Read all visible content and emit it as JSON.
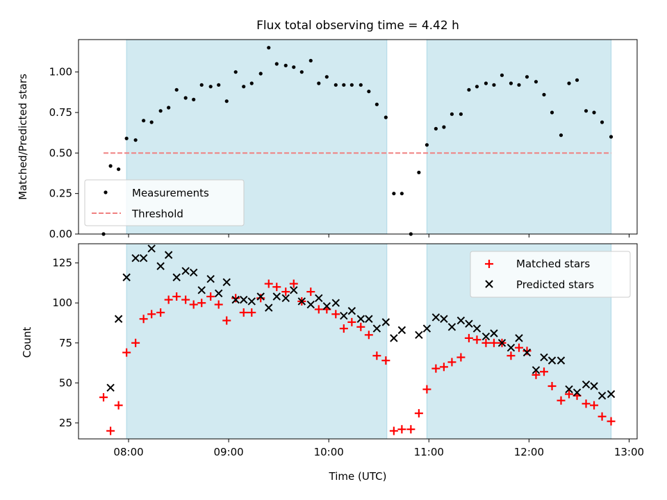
{
  "chart_data": [
    {
      "id": "top",
      "type": "scatter",
      "title": "Flux total observing time = 4.42 h",
      "xlabel": "",
      "ylabel": "Matched/Predicted stars",
      "xlim": [
        7.5,
        13.08
      ],
      "ylim": [
        0,
        1.2
      ],
      "yticks": [
        0.0,
        0.25,
        0.5,
        0.75,
        1.0
      ],
      "ytick_labels": [
        "0.00",
        "0.25",
        "0.50",
        "0.75",
        "1.00"
      ],
      "shaded_intervals": [
        [
          7.98,
          10.58
        ],
        [
          10.98,
          12.82
        ]
      ],
      "threshold": {
        "value": 0.5,
        "x_start": 7.75,
        "x_end": 12.82,
        "label": "Threshold",
        "color": "#f08080"
      },
      "legend": {
        "position": "lower-left",
        "entries": [
          "Measurements",
          "Threshold"
        ]
      },
      "series": [
        {
          "name": "Measurements",
          "marker": "dot",
          "color": "#000000",
          "points": [
            [
              7.75,
              0.0
            ],
            [
              7.82,
              0.42
            ],
            [
              7.9,
              0.4
            ],
            [
              7.98,
              0.59
            ],
            [
              8.07,
              0.58
            ],
            [
              8.15,
              0.7
            ],
            [
              8.23,
              0.69
            ],
            [
              8.32,
              0.76
            ],
            [
              8.4,
              0.78
            ],
            [
              8.48,
              0.89
            ],
            [
              8.57,
              0.84
            ],
            [
              8.65,
              0.83
            ],
            [
              8.73,
              0.92
            ],
            [
              8.82,
              0.91
            ],
            [
              8.9,
              0.92
            ],
            [
              8.98,
              0.82
            ],
            [
              9.07,
              1.0
            ],
            [
              9.15,
              0.91
            ],
            [
              9.23,
              0.93
            ],
            [
              9.32,
              0.99
            ],
            [
              9.4,
              1.15
            ],
            [
              9.48,
              1.05
            ],
            [
              9.57,
              1.04
            ],
            [
              9.65,
              1.03
            ],
            [
              9.73,
              1.0
            ],
            [
              9.82,
              1.07
            ],
            [
              9.9,
              0.93
            ],
            [
              9.98,
              0.97
            ],
            [
              10.07,
              0.92
            ],
            [
              10.15,
              0.92
            ],
            [
              10.23,
              0.92
            ],
            [
              10.32,
              0.92
            ],
            [
              10.4,
              0.88
            ],
            [
              10.48,
              0.8
            ],
            [
              10.57,
              0.72
            ],
            [
              10.65,
              0.25
            ],
            [
              10.73,
              0.25
            ],
            [
              10.82,
              0.0
            ],
            [
              10.9,
              0.38
            ],
            [
              10.98,
              0.55
            ],
            [
              11.07,
              0.65
            ],
            [
              11.15,
              0.66
            ],
            [
              11.23,
              0.74
            ],
            [
              11.32,
              0.74
            ],
            [
              11.4,
              0.89
            ],
            [
              11.48,
              0.91
            ],
            [
              11.57,
              0.93
            ],
            [
              11.65,
              0.92
            ],
            [
              11.73,
              0.98
            ],
            [
              11.82,
              0.93
            ],
            [
              11.9,
              0.92
            ],
            [
              11.98,
              0.97
            ],
            [
              12.07,
              0.94
            ],
            [
              12.15,
              0.86
            ],
            [
              12.23,
              0.75
            ],
            [
              12.32,
              0.61
            ],
            [
              12.4,
              0.93
            ],
            [
              12.48,
              0.95
            ],
            [
              12.57,
              0.76
            ],
            [
              12.65,
              0.75
            ],
            [
              12.73,
              0.69
            ],
            [
              12.82,
              0.6
            ]
          ]
        }
      ]
    },
    {
      "id": "bottom",
      "type": "scatter",
      "title": "",
      "xlabel": "Time (UTC)",
      "ylabel": "Count",
      "xlim": [
        7.5,
        13.08
      ],
      "ylim": [
        15,
        137
      ],
      "yticks": [
        25,
        50,
        75,
        100,
        125
      ],
      "ytick_labels": [
        "25",
        "50",
        "75",
        "100",
        "125"
      ],
      "xticks": [
        8,
        9,
        10,
        11,
        12,
        13
      ],
      "xtick_labels": [
        "08:00",
        "09:00",
        "10:00",
        "11:00",
        "12:00",
        "13:00"
      ],
      "shaded_intervals": [
        [
          7.98,
          10.58
        ],
        [
          10.98,
          12.82
        ]
      ],
      "legend": {
        "position": "top-right",
        "entries": [
          "Matched stars",
          "Predicted stars"
        ]
      },
      "series": [
        {
          "name": "Matched stars",
          "marker": "plus",
          "color": "#ff0000",
          "points": [
            [
              7.75,
              41
            ],
            [
              7.82,
              20
            ],
            [
              7.9,
              36
            ],
            [
              7.98,
              69
            ],
            [
              8.07,
              75
            ],
            [
              8.15,
              90
            ],
            [
              8.23,
              93
            ],
            [
              8.32,
              94
            ],
            [
              8.4,
              102
            ],
            [
              8.48,
              104
            ],
            [
              8.57,
              102
            ],
            [
              8.65,
              99
            ],
            [
              8.73,
              100
            ],
            [
              8.82,
              104
            ],
            [
              8.9,
              99
            ],
            [
              8.98,
              89
            ],
            [
              9.07,
              103
            ],
            [
              9.15,
              94
            ],
            [
              9.23,
              94
            ],
            [
              9.32,
              103
            ],
            [
              9.4,
              112
            ],
            [
              9.48,
              110
            ],
            [
              9.57,
              107
            ],
            [
              9.65,
              112
            ],
            [
              9.73,
              101
            ],
            [
              9.82,
              107
            ],
            [
              9.9,
              96
            ],
            [
              9.98,
              96
            ],
            [
              10.07,
              93
            ],
            [
              10.15,
              84
            ],
            [
              10.23,
              88
            ],
            [
              10.32,
              85
            ],
            [
              10.4,
              80
            ],
            [
              10.48,
              67
            ],
            [
              10.57,
              64
            ],
            [
              10.65,
              20
            ],
            [
              10.73,
              21
            ],
            [
              10.82,
              21
            ],
            [
              10.9,
              31
            ],
            [
              10.98,
              46
            ],
            [
              11.07,
              59
            ],
            [
              11.15,
              60
            ],
            [
              11.23,
              63
            ],
            [
              11.32,
              66
            ],
            [
              11.4,
              78
            ],
            [
              11.48,
              77
            ],
            [
              11.57,
              75
            ],
            [
              11.65,
              75
            ],
            [
              11.73,
              75
            ],
            [
              11.82,
              67
            ],
            [
              11.9,
              72
            ],
            [
              11.98,
              70
            ],
            [
              12.07,
              55
            ],
            [
              12.15,
              57
            ],
            [
              12.23,
              48
            ],
            [
              12.32,
              39
            ],
            [
              12.4,
              43
            ],
            [
              12.48,
              42
            ],
            [
              12.57,
              37
            ],
            [
              12.65,
              36
            ],
            [
              12.73,
              29
            ],
            [
              12.82,
              26
            ]
          ]
        },
        {
          "name": "Predicted stars",
          "marker": "x",
          "color": "#000000",
          "points": [
            [
              7.82,
              47
            ],
            [
              7.9,
              90
            ],
            [
              7.98,
              116
            ],
            [
              8.07,
              128
            ],
            [
              8.15,
              128
            ],
            [
              8.23,
              134
            ],
            [
              8.32,
              123
            ],
            [
              8.4,
              130
            ],
            [
              8.48,
              116
            ],
            [
              8.57,
              120
            ],
            [
              8.65,
              119
            ],
            [
              8.73,
              108
            ],
            [
              8.82,
              115
            ],
            [
              8.9,
              106
            ],
            [
              8.98,
              113
            ],
            [
              9.07,
              102
            ],
            [
              9.15,
              102
            ],
            [
              9.23,
              101
            ],
            [
              9.32,
              104
            ],
            [
              9.4,
              97
            ],
            [
              9.48,
              104
            ],
            [
              9.57,
              103
            ],
            [
              9.65,
              108
            ],
            [
              9.73,
              101
            ],
            [
              9.82,
              99
            ],
            [
              9.9,
              103
            ],
            [
              9.98,
              98
            ],
            [
              10.07,
              100
            ],
            [
              10.15,
              92
            ],
            [
              10.23,
              95
            ],
            [
              10.32,
              90
            ],
            [
              10.4,
              90
            ],
            [
              10.48,
              84
            ],
            [
              10.57,
              88
            ],
            [
              10.65,
              78
            ],
            [
              10.73,
              83
            ],
            [
              10.9,
              80
            ],
            [
              10.98,
              84
            ],
            [
              11.07,
              91
            ],
            [
              11.15,
              90
            ],
            [
              11.23,
              85
            ],
            [
              11.32,
              89
            ],
            [
              11.4,
              87
            ],
            [
              11.48,
              84
            ],
            [
              11.57,
              79
            ],
            [
              11.65,
              81
            ],
            [
              11.73,
              75
            ],
            [
              11.82,
              72
            ],
            [
              11.9,
              78
            ],
            [
              11.98,
              69
            ],
            [
              12.07,
              58
            ],
            [
              12.15,
              66
            ],
            [
              12.23,
              64
            ],
            [
              12.32,
              64
            ],
            [
              12.4,
              46
            ],
            [
              12.48,
              44
            ],
            [
              12.57,
              49
            ],
            [
              12.65,
              48
            ],
            [
              12.73,
              42
            ],
            [
              12.82,
              43
            ]
          ]
        }
      ]
    }
  ],
  "colors": {
    "shade_fill": "#add8e6",
    "shade_edge": "#add8e6",
    "threshold": "#f08080",
    "matched": "#ff0000",
    "predicted": "#000000",
    "measurement": "#000000"
  }
}
